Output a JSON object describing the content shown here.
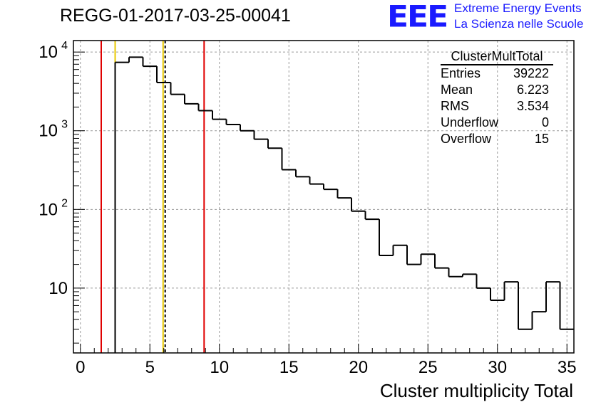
{
  "page_title": "REGG-01-2017-03-25-00041",
  "logo": {
    "text": "EEE",
    "line1": "Extreme Energy Events",
    "line2": "La Scienza nelle Scuole",
    "color": "#1a1aff"
  },
  "stats": {
    "title": "ClusterMultTotal",
    "rows": [
      {
        "label": "Entries",
        "value": "39222"
      },
      {
        "label": "Mean",
        "value": "6.223"
      },
      {
        "label": "RMS",
        "value": "3.534"
      },
      {
        "label": "Underflow",
        "value": "0"
      },
      {
        "label": "Overflow",
        "value": "15"
      }
    ]
  },
  "chart_data": {
    "type": "histogram",
    "xlabel": "Cluster multiplicity Total",
    "ylabel": "",
    "xlim": [
      -0.5,
      35.5
    ],
    "ylim": [
      1.5,
      14000
    ],
    "yscale": "log",
    "grid": true,
    "x_ticks": [
      0,
      5,
      10,
      15,
      20,
      25,
      30,
      35
    ],
    "y_ticks": [
      {
        "value": 10,
        "label": "10"
      },
      {
        "value": 100,
        "label": "10",
        "exp": "2"
      },
      {
        "value": 1000,
        "label": "10",
        "exp": "3"
      },
      {
        "value": 10000,
        "label": "10",
        "exp": "4"
      }
    ],
    "bin_width": 1,
    "bin_centers": [
      1,
      2,
      3,
      4,
      5,
      6,
      7,
      8,
      9,
      10,
      11,
      12,
      13,
      14,
      15,
      16,
      17,
      18,
      19,
      20,
      21,
      22,
      23,
      24,
      25,
      26,
      27,
      28,
      29,
      30,
      31,
      32,
      33,
      34,
      35
    ],
    "counts": [
      0,
      0,
      7400,
      8600,
      6600,
      4100,
      2900,
      2200,
      1800,
      1400,
      1200,
      1000,
      780,
      600,
      320,
      260,
      210,
      180,
      140,
      95,
      75,
      26,
      35,
      20,
      27,
      18,
      14,
      15,
      10,
      7,
      12,
      3,
      5,
      12,
      3
    ],
    "vertical_lines": [
      {
        "x": 1.5,
        "color": "#e00000",
        "style": "solid"
      },
      {
        "x": 8.9,
        "color": "#e00000",
        "style": "solid"
      },
      {
        "x": 2.5,
        "color": "#e8c800",
        "style": "solid"
      },
      {
        "x": 5.95,
        "color": "#e8c800",
        "style": "solid"
      },
      {
        "x": 6.1,
        "color": "#000000",
        "style": "dashed"
      }
    ],
    "line_color": "#000000"
  }
}
